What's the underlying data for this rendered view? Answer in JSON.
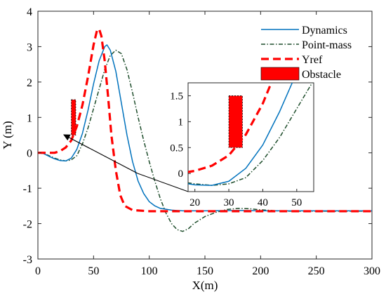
{
  "chart_data": {
    "type": "line",
    "xlabel": "X(m)",
    "ylabel": "Y (m)",
    "xlim": [
      0,
      300
    ],
    "ylim": [
      -3,
      4
    ],
    "xticks": [
      0,
      50,
      100,
      150,
      200,
      250,
      300
    ],
    "yticks": [
      -3,
      -2,
      -1,
      0,
      1,
      2,
      3,
      4
    ],
    "grid": false,
    "legend_position": "top-right",
    "series": [
      {
        "name": "Dynamics",
        "color": "#0072BD",
        "style": "solid",
        "points": [
          [
            0,
            0
          ],
          [
            5,
            -0.02
          ],
          [
            10,
            -0.1
          ],
          [
            15,
            -0.17
          ],
          [
            20,
            -0.22
          ],
          [
            25,
            -0.23
          ],
          [
            30,
            -0.15
          ],
          [
            35,
            0.1
          ],
          [
            40,
            0.55
          ],
          [
            45,
            1.2
          ],
          [
            50,
            1.95
          ],
          [
            55,
            2.6
          ],
          [
            60,
            3.0
          ],
          [
            62,
            3.05
          ],
          [
            65,
            2.9
          ],
          [
            70,
            2.3
          ],
          [
            75,
            1.4
          ],
          [
            80,
            0.5
          ],
          [
            85,
            -0.25
          ],
          [
            90,
            -0.8
          ],
          [
            95,
            -1.15
          ],
          [
            100,
            -1.38
          ],
          [
            105,
            -1.5
          ],
          [
            110,
            -1.57
          ],
          [
            120,
            -1.62
          ],
          [
            130,
            -1.64
          ],
          [
            150,
            -1.64
          ],
          [
            180,
            -1.63
          ],
          [
            210,
            -1.64
          ],
          [
            250,
            -1.64
          ],
          [
            300,
            -1.64
          ]
        ]
      },
      {
        "name": "Point-mass",
        "color": "#1E4D2B",
        "style": "dashdot",
        "points": [
          [
            0,
            0
          ],
          [
            5,
            -0.02
          ],
          [
            10,
            -0.08
          ],
          [
            15,
            -0.15
          ],
          [
            20,
            -0.2
          ],
          [
            25,
            -0.23
          ],
          [
            30,
            -0.2
          ],
          [
            35,
            -0.08
          ],
          [
            40,
            0.25
          ],
          [
            45,
            0.7
          ],
          [
            50,
            1.25
          ],
          [
            55,
            1.8
          ],
          [
            60,
            2.35
          ],
          [
            65,
            2.75
          ],
          [
            70,
            2.9
          ],
          [
            75,
            2.8
          ],
          [
            80,
            2.35
          ],
          [
            85,
            1.7
          ],
          [
            90,
            1.0
          ],
          [
            95,
            0.35
          ],
          [
            100,
            -0.25
          ],
          [
            105,
            -0.8
          ],
          [
            110,
            -1.3
          ],
          [
            115,
            -1.7
          ],
          [
            120,
            -2.0
          ],
          [
            125,
            -2.17
          ],
          [
            130,
            -2.22
          ],
          [
            135,
            -2.15
          ],
          [
            140,
            -2.0
          ],
          [
            150,
            -1.8
          ],
          [
            160,
            -1.68
          ],
          [
            170,
            -1.6
          ],
          [
            180,
            -1.57
          ],
          [
            190,
            -1.58
          ],
          [
            200,
            -1.61
          ],
          [
            220,
            -1.65
          ],
          [
            250,
            -1.65
          ],
          [
            300,
            -1.65
          ]
        ]
      },
      {
        "name": "Yref",
        "color": "#FF0000",
        "style": "dashed",
        "points": [
          [
            0,
            0
          ],
          [
            10,
            0
          ],
          [
            15,
            0
          ],
          [
            20,
            0.05
          ],
          [
            25,
            0.15
          ],
          [
            30,
            0.35
          ],
          [
            35,
            0.75
          ],
          [
            40,
            1.35
          ],
          [
            45,
            2.15
          ],
          [
            50,
            3.05
          ],
          [
            53,
            3.45
          ],
          [
            55,
            3.5
          ],
          [
            57,
            3.3
          ],
          [
            60,
            2.6
          ],
          [
            63,
            1.6
          ],
          [
            66,
            0.5
          ],
          [
            70,
            -0.5
          ],
          [
            74,
            -1.2
          ],
          [
            78,
            -1.5
          ],
          [
            85,
            -1.62
          ],
          [
            100,
            -1.65
          ],
          [
            300,
            -1.65
          ]
        ]
      }
    ],
    "obstacle": {
      "name": "Obstacle",
      "color": "#FF0000",
      "x": [
        30,
        34
      ],
      "y": [
        0.5,
        1.5
      ]
    },
    "inset": {
      "xlim": [
        18,
        55
      ],
      "ylim": [
        -0.35,
        1.75
      ],
      "xticks": [
        20,
        30,
        40,
        50
      ],
      "yticks": [
        0,
        0.5,
        1,
        1.5
      ]
    }
  }
}
